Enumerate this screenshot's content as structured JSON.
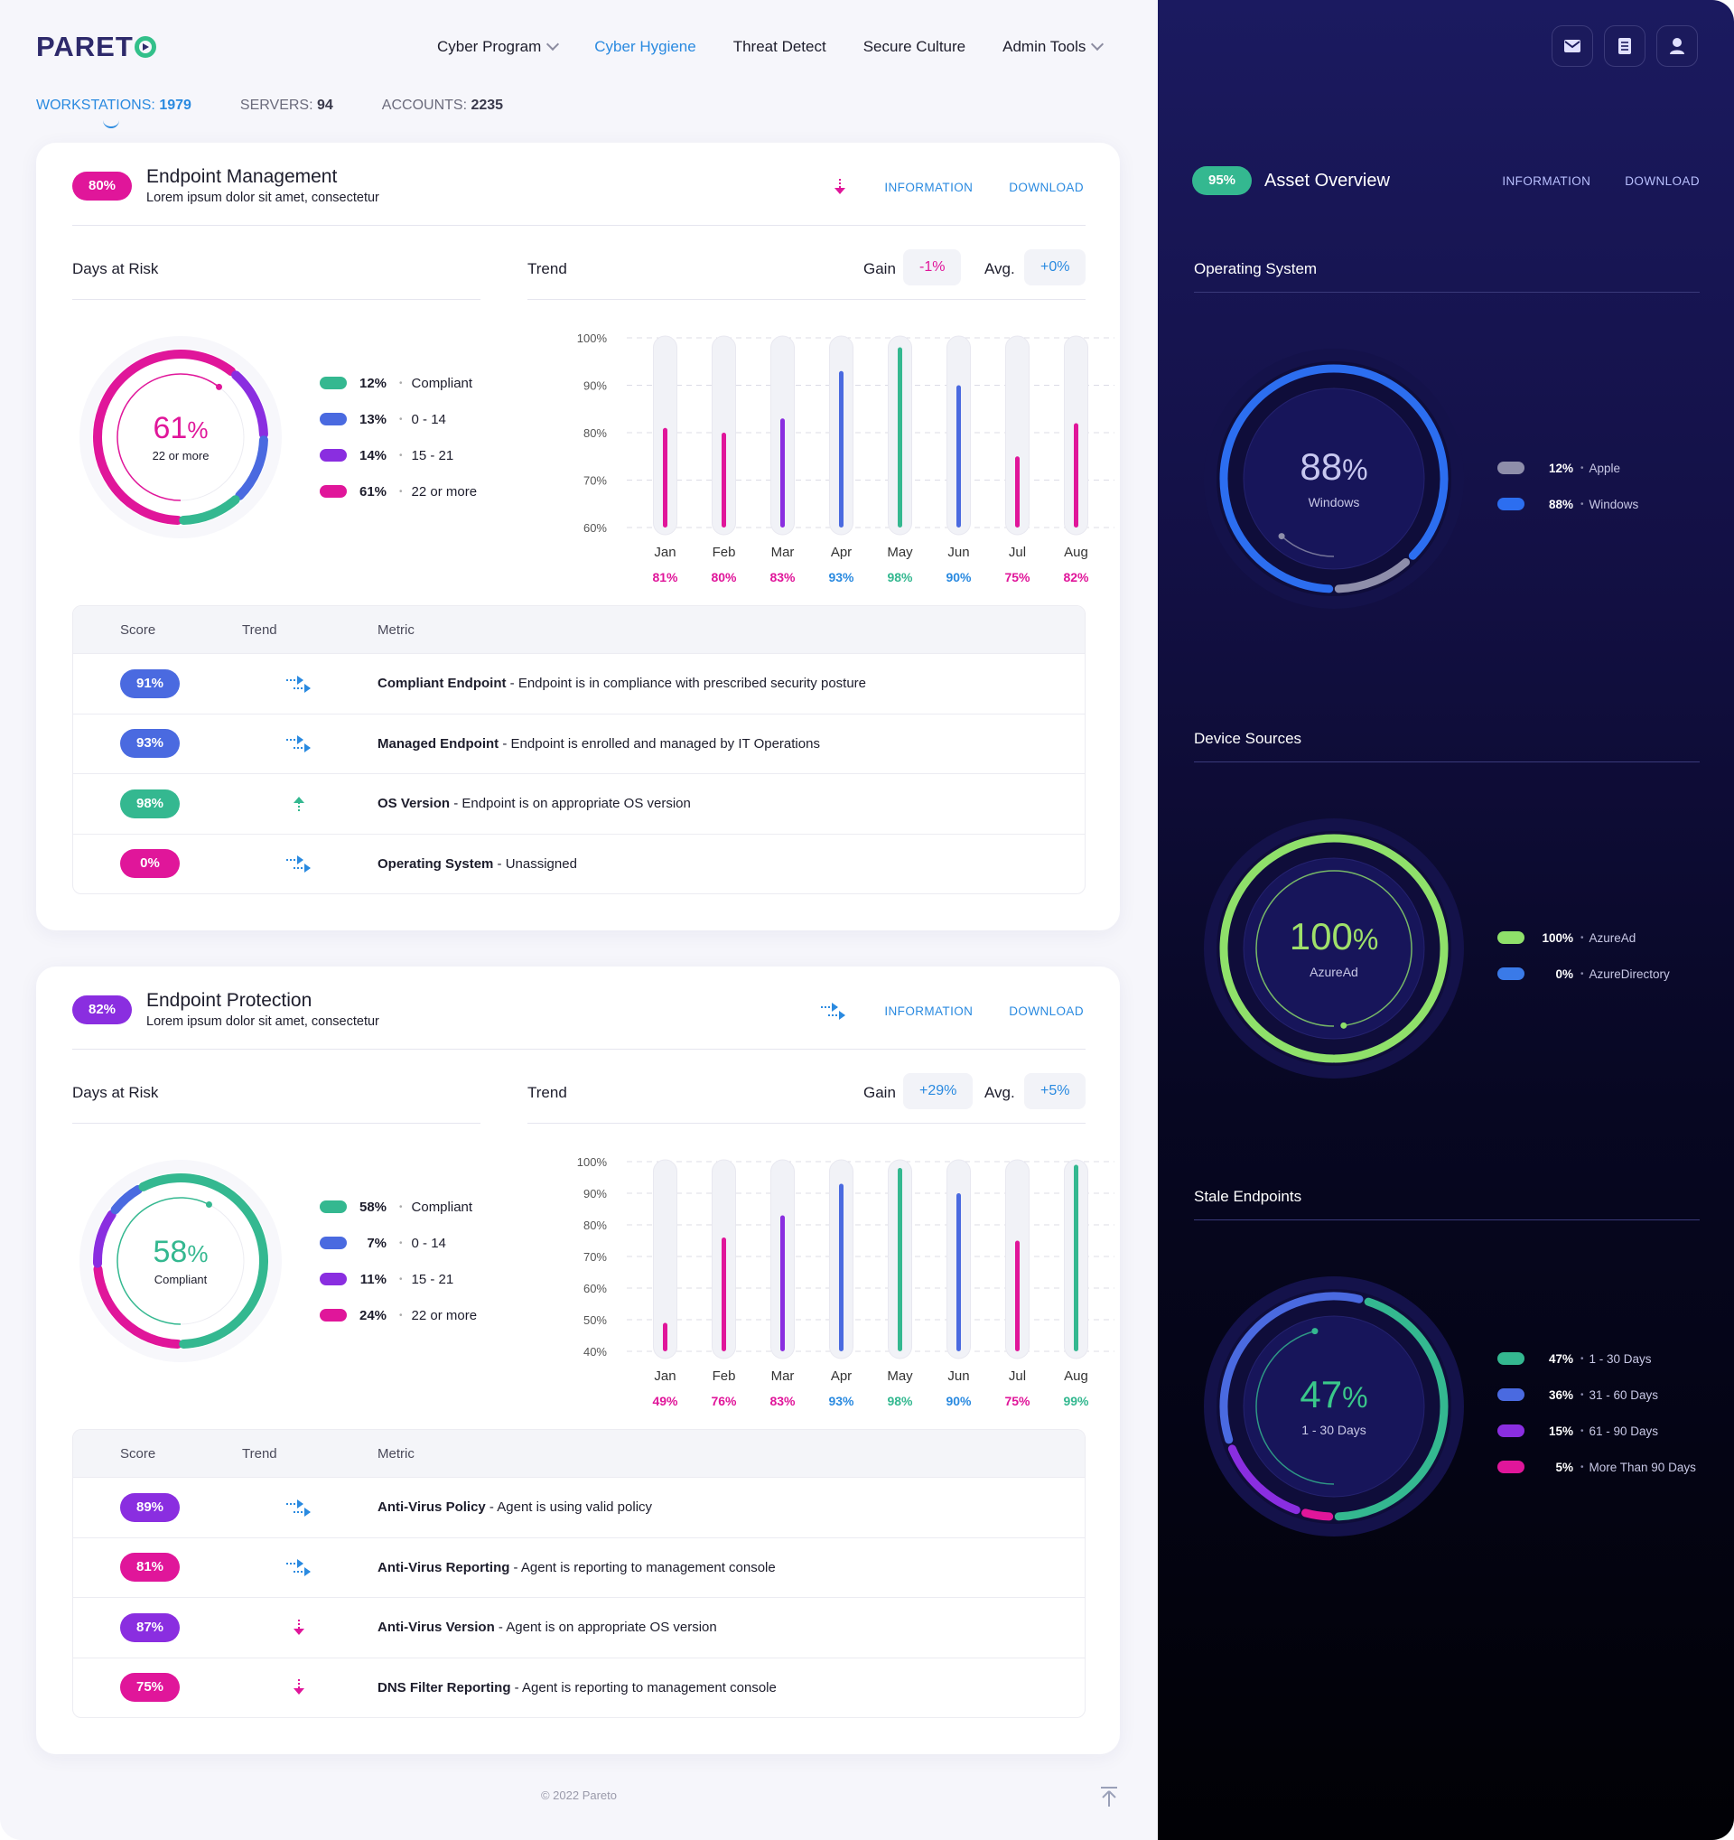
{
  "brand": {
    "logo": "PARETO"
  },
  "nav": [
    {
      "label": "Cyber Program",
      "dropdown": true,
      "active": false
    },
    {
      "label": "Cyber Hygiene",
      "dropdown": false,
      "active": true
    },
    {
      "label": "Threat Detect",
      "dropdown": false,
      "active": false
    },
    {
      "label": "Secure Culture",
      "dropdown": false,
      "active": false
    },
    {
      "label": "Admin Tools",
      "dropdown": true,
      "active": false
    }
  ],
  "stats": [
    {
      "label": "WORKSTATIONS:",
      "value": "1979",
      "active": true
    },
    {
      "label": "SERVERS:",
      "value": "94",
      "active": false
    },
    {
      "label": "ACCOUNTS:",
      "value": "2235",
      "active": false
    }
  ],
  "colors": {
    "teal": "#34b890",
    "blue": "#4a6ae0",
    "purple": "#8a2ee0",
    "pink": "#e0169a",
    "accent": "#2a8ae0",
    "osGray": "#8e8eaa",
    "osBlue": "#2c6ef0",
    "azureGreen": "#8fe06a",
    "dirBlue": "#3a7ae8"
  },
  "cards": [
    {
      "badge": "80%",
      "badge_color": "#e0169a",
      "title": "Endpoint Management",
      "subtitle": "Lorem ipsum dolor sit amet, consectetur",
      "trend_icon": "arrow-down-icon",
      "info_label": "INFORMATION",
      "download_label": "DOWNLOAD",
      "days_label": "Days at Risk",
      "trend_label": "Trend",
      "gain_label": "Gain",
      "gain_value": "-1%",
      "gain_color": "#e0169a",
      "avg_label": "Avg.",
      "avg_value": "+0%",
      "avg_color": "#2a8ae0",
      "donut": {
        "pct": "61",
        "unit": "%",
        "caption": "22 or more",
        "color": "#e0169a"
      },
      "legend": [
        {
          "pct": "12%",
          "label": "Compliant",
          "color": "#34b890",
          "value": 12
        },
        {
          "pct": "13%",
          "label": "0 - 14",
          "color": "#4a6ae0",
          "value": 13
        },
        {
          "pct": "14%",
          "label": "15 - 21",
          "color": "#8a2ee0",
          "value": 14
        },
        {
          "pct": "61%",
          "label": "22 or more",
          "color": "#e0169a",
          "value": 61
        }
      ],
      "chart_data": {
        "type": "bar",
        "categories": [
          "Jan",
          "Feb",
          "Mar",
          "Apr",
          "May",
          "Jun",
          "Jul",
          "Aug"
        ],
        "values": [
          81,
          80,
          83,
          93,
          98,
          90,
          75,
          82
        ],
        "value_labels": [
          "81%",
          "80%",
          "83%",
          "93%",
          "98%",
          "90%",
          "75%",
          "82%"
        ],
        "colors": [
          "#e0169a",
          "#e0169a",
          "#8a2ee0",
          "#4a6ae0",
          "#34b890",
          "#4a6ae0",
          "#e0169a",
          "#e0169a"
        ],
        "label_colors": [
          "#e0169a",
          "#e0169a",
          "#e0169a",
          "#2a8ae0",
          "#34b890",
          "#2a8ae0",
          "#e0169a",
          "#e0169a"
        ],
        "yticks": [
          "100%",
          "90%",
          "80%",
          "70%",
          "60%"
        ],
        "ylim": [
          60,
          100
        ]
      },
      "table": {
        "headers": {
          "score": "Score",
          "trend": "Trend",
          "metric": "Metric"
        },
        "rows": [
          {
            "score": "91%",
            "color": "#4a6ae0",
            "icon": "trend-flat-icon",
            "name": "Compliant Endpoint",
            "desc": " - Endpoint is in compliance with prescribed security posture"
          },
          {
            "score": "93%",
            "color": "#4a6ae0",
            "icon": "trend-flat-icon",
            "name": "Managed Endpoint",
            "desc": " - Endpoint is enrolled and managed by IT Operations"
          },
          {
            "score": "98%",
            "color": "#34b890",
            "icon": "arrow-up-icon",
            "name": "OS Version",
            "desc": " - Endpoint is on appropriate OS version"
          },
          {
            "score": "0%",
            "color": "#e0169a",
            "icon": "trend-flat-icon",
            "name": "Operating System",
            "desc": " - Unassigned"
          }
        ]
      }
    },
    {
      "badge": "82%",
      "badge_color": "#8a2ee0",
      "title": "Endpoint Protection",
      "subtitle": "Lorem ipsum dolor sit amet, consectetur",
      "trend_icon": "trend-flat-icon",
      "info_label": "INFORMATION",
      "download_label": "DOWNLOAD",
      "days_label": "Days at Risk",
      "trend_label": "Trend",
      "gain_label": "Gain",
      "gain_value": "+29%",
      "gain_color": "#2a8ae0",
      "avg_label": "Avg.",
      "avg_value": "+5%",
      "avg_color": "#2a8ae0",
      "donut": {
        "pct": "58",
        "unit": "%",
        "caption": "Compliant",
        "color": "#34b890"
      },
      "legend": [
        {
          "pct": "58%",
          "label": "Compliant",
          "color": "#34b890",
          "value": 58
        },
        {
          "pct": "7%",
          "label": "0 - 14",
          "color": "#4a6ae0",
          "value": 7
        },
        {
          "pct": "11%",
          "label": "15 - 21",
          "color": "#8a2ee0",
          "value": 11
        },
        {
          "pct": "24%",
          "label": "22 or more",
          "color": "#e0169a",
          "value": 24
        }
      ],
      "chart_data": {
        "type": "bar",
        "categories": [
          "Jan",
          "Feb",
          "Mar",
          "Apr",
          "May",
          "Jun",
          "Jul",
          "Aug"
        ],
        "values": [
          49,
          76,
          83,
          93,
          98,
          90,
          75,
          99
        ],
        "value_labels": [
          "49%",
          "76%",
          "83%",
          "93%",
          "98%",
          "90%",
          "75%",
          "99%"
        ],
        "colors": [
          "#e0169a",
          "#e0169a",
          "#8a2ee0",
          "#4a6ae0",
          "#34b890",
          "#4a6ae0",
          "#e0169a",
          "#34b890"
        ],
        "label_colors": [
          "#e0169a",
          "#e0169a",
          "#e0169a",
          "#2a8ae0",
          "#34b890",
          "#2a8ae0",
          "#e0169a",
          "#34b890"
        ],
        "yticks": [
          "100%",
          "90%",
          "80%",
          "70%",
          "60%",
          "50%",
          "40%"
        ],
        "ylim": [
          40,
          100
        ]
      },
      "table": {
        "headers": {
          "score": "Score",
          "trend": "Trend",
          "metric": "Metric"
        },
        "rows": [
          {
            "score": "89%",
            "color": "#8a2ee0",
            "icon": "trend-flat-icon",
            "name": "Anti-Virus Policy",
            "desc": " - Agent is using valid policy"
          },
          {
            "score": "81%",
            "color": "#e0169a",
            "icon": "trend-flat-icon",
            "name": "Anti-Virus Reporting",
            "desc": " - Agent is reporting to management console"
          },
          {
            "score": "87%",
            "color": "#8a2ee0",
            "icon": "arrow-down-icon",
            "name": "Anti-Virus Version",
            "desc": " - Agent is on appropriate OS version"
          },
          {
            "score": "75%",
            "color": "#e0169a",
            "icon": "arrow-down-icon",
            "name": "DNS Filter Reporting",
            "desc": " - Agent is reporting to management console"
          }
        ]
      }
    }
  ],
  "footer": "© 2022 Pareto",
  "panel": {
    "icons": [
      "mail-icon",
      "document-icon",
      "user-icon"
    ],
    "badge": "95%",
    "title": "Asset Overview",
    "info_label": "INFORMATION",
    "download_label": "DOWNLOAD",
    "sections": [
      {
        "title": "Operating System",
        "pct": "88",
        "unit": "%",
        "caption": "Windows",
        "pct_color": "#c8c8f0",
        "legend": [
          {
            "pct": "12%",
            "label": "Apple",
            "color": "#8e8eaa",
            "value": 12
          },
          {
            "pct": "88%",
            "label": "Windows",
            "color": "#2c6ef0",
            "value": 88
          }
        ]
      },
      {
        "title": "Device Sources",
        "pct": "100",
        "unit": "%",
        "caption": "AzureAd",
        "pct_color": "#9fe06a",
        "legend": [
          {
            "pct": "100%",
            "label": "AzureAd",
            "color": "#8fe06a",
            "value": 100
          },
          {
            "pct": "0%",
            "label": "AzureDirectory",
            "color": "#3a7ae8",
            "value": 0
          }
        ]
      },
      {
        "title": "Stale Endpoints",
        "pct": "47",
        "unit": "%",
        "caption": "1 - 30 Days",
        "pct_color": "#3ac88a",
        "legend": [
          {
            "pct": "47%",
            "label": "1 - 30 Days",
            "color": "#34b890",
            "value": 47
          },
          {
            "pct": "36%",
            "label": "31 - 60 Days",
            "color": "#4a6ae0",
            "value": 36
          },
          {
            "pct": "15%",
            "label": "61 - 90 Days",
            "color": "#8a2ee0",
            "value": 15
          },
          {
            "pct": "5%",
            "label": "More Than 90 Days",
            "color": "#e0169a",
            "value": 5
          }
        ]
      }
    ]
  }
}
